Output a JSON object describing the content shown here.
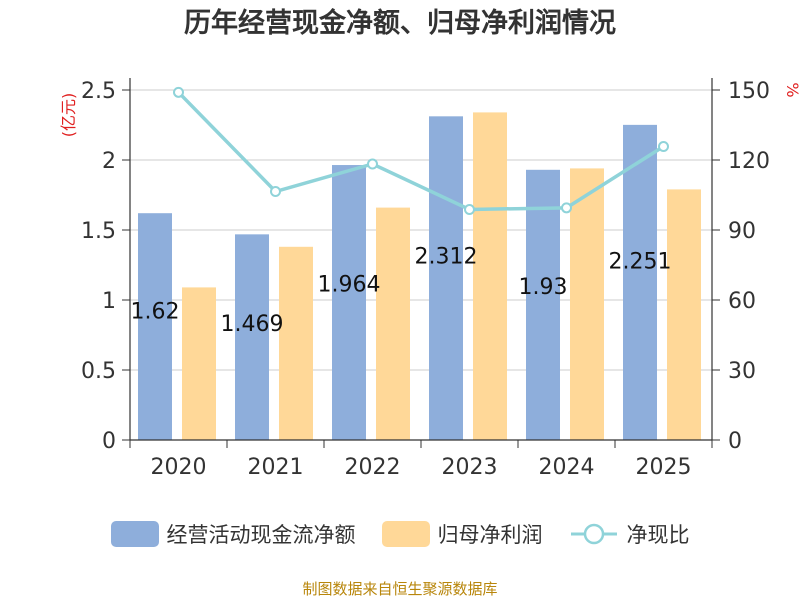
{
  "chart_data": {
    "type": "bar",
    "title": "历年经营现金净额、归母净利润情况",
    "categories": [
      "2020",
      "2021",
      "2022",
      "2023",
      "2024",
      "2025"
    ],
    "series": [
      {
        "name": "经营活动现金流净额",
        "kind": "bar",
        "axis": "left",
        "color": "#8eaedb",
        "values": [
          1.62,
          1.469,
          1.964,
          2.312,
          1.93,
          2.251
        ],
        "labels": [
          "1.62",
          "1.469",
          "1.964",
          "2.312",
          "1.93",
          "2.251"
        ]
      },
      {
        "name": "归母净利润",
        "kind": "bar",
        "axis": "left",
        "color": "#ffd898",
        "values": [
          1.09,
          1.38,
          1.66,
          2.34,
          1.94,
          1.79
        ]
      },
      {
        "name": "净现比",
        "kind": "line",
        "axis": "right",
        "color": "#8fd3d9",
        "values": [
          149,
          106.5,
          118.3,
          98.8,
          99.5,
          125.8
        ]
      }
    ],
    "left_axis": {
      "unit": "(亿元)",
      "min": 0,
      "max": 2.5,
      "ticks": [
        "0",
        "0.5",
        "1",
        "1.5",
        "2",
        "2.5"
      ]
    },
    "right_axis": {
      "unit": "%",
      "min": 0,
      "max": 150,
      "ticks": [
        "0",
        "30",
        "60",
        "90",
        "120",
        "150"
      ]
    },
    "grid": true,
    "legend_position": "bottom"
  },
  "footer": "制图数据来自恒生聚源数据库"
}
